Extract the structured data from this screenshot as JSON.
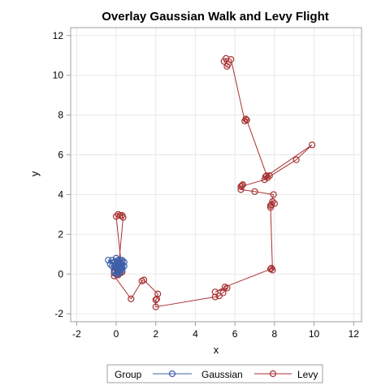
{
  "chart_data": {
    "type": "scatter",
    "title": "Overlay Gaussian Walk and Levy Flight",
    "xlabel": "x",
    "ylabel": "y",
    "xlim": [
      -2.3,
      12.4
    ],
    "ylim": [
      -2.4,
      12.4
    ],
    "x_ticks": [
      -2,
      0,
      2,
      4,
      6,
      8,
      10,
      12
    ],
    "y_ticks": [
      -2,
      0,
      2,
      4,
      6,
      8,
      10,
      12
    ],
    "grid": true,
    "legend": {
      "title": "Group",
      "placement": "bottom",
      "entries": [
        "Gaussian",
        "Levy"
      ]
    },
    "series": [
      {
        "name": "Gaussian",
        "color": "#3f5fa8",
        "marker": "open-circle",
        "line": true,
        "points": [
          [
            0,
            0
          ],
          [
            0.1,
            0.2
          ],
          [
            -0.1,
            0.4
          ],
          [
            0.2,
            0.5
          ],
          [
            0.3,
            0.3
          ],
          [
            0.1,
            0.6
          ],
          [
            -0.2,
            0.7
          ],
          [
            -0.4,
            0.7
          ],
          [
            -0.3,
            0.5
          ],
          [
            0,
            0.8
          ],
          [
            0.2,
            0.7
          ],
          [
            0.4,
            0.6
          ],
          [
            0.3,
            0.4
          ],
          [
            0.1,
            0.3
          ],
          [
            -0.1,
            0.2
          ],
          [
            0.1,
            0.1
          ],
          [
            0.3,
            0.2
          ],
          [
            0.2,
            0.4
          ],
          [
            0,
            0.5
          ],
          [
            0.2,
            0.3
          ],
          [
            0.4,
            0.4
          ],
          [
            0.3,
            0.6
          ],
          [
            0.1,
            0.7
          ],
          [
            -0.1,
            0.6
          ],
          [
            0,
            0.4
          ],
          [
            0.2,
            0.2
          ],
          [
            0.1,
            0
          ],
          [
            -0.1,
            0.1
          ],
          [
            0,
            0.3
          ],
          [
            0.2,
            0.5
          ],
          [
            0.3,
            0.7
          ],
          [
            0.1,
            0.5
          ],
          [
            -0.2,
            0.4
          ],
          [
            -0.1,
            0.2
          ],
          [
            0.2,
            0.1
          ],
          [
            0.3,
            0.3
          ],
          [
            0.1,
            0.4
          ]
        ]
      },
      {
        "name": "Levy",
        "color": "#a83232",
        "marker": "open-circle",
        "line": true,
        "points": [
          [
            0,
            0
          ],
          [
            0.05,
            0.1
          ],
          [
            -0.1,
            0.05
          ],
          [
            0.1,
            -0.05
          ],
          [
            0.2,
            0.05
          ],
          [
            0.3,
            0.1
          ],
          [
            0,
            2.9
          ],
          [
            0.1,
            3
          ],
          [
            0.2,
            2.95
          ],
          [
            0.3,
            2.95
          ],
          [
            0.35,
            2.85
          ],
          [
            0.1,
            0.1
          ],
          [
            -0.1,
            -0.1
          ],
          [
            0.75,
            -1.25
          ],
          [
            1.3,
            -0.35
          ],
          [
            1.4,
            -0.3
          ],
          [
            2.1,
            -1.0
          ],
          [
            2.05,
            -1.25
          ],
          [
            2,
            -1.3
          ],
          [
            2,
            -1.65
          ],
          [
            5,
            -1.15
          ],
          [
            5.2,
            -1.1
          ],
          [
            5.4,
            -0.95
          ],
          [
            5.6,
            -0.7
          ],
          [
            5.0,
            -0.9
          ],
          [
            5.5,
            -0.65
          ],
          [
            7.8,
            0.25
          ],
          [
            7.85,
            0.3
          ],
          [
            7.9,
            0.2
          ],
          [
            7.8,
            3.35
          ],
          [
            7.85,
            3.5
          ],
          [
            8,
            3.55
          ],
          [
            7.9,
            3.65
          ],
          [
            7.8,
            3.45
          ],
          [
            7.95,
            4.0
          ],
          [
            7.0,
            4.15
          ],
          [
            6.3,
            4.25
          ],
          [
            6.35,
            4.45
          ],
          [
            6.4,
            4.5
          ],
          [
            6.3,
            4.4
          ],
          [
            7.5,
            4.75
          ],
          [
            7.6,
            4.95
          ],
          [
            7.75,
            4.95
          ],
          [
            7.55,
            4.9
          ],
          [
            9.9,
            6.5
          ],
          [
            9.1,
            5.75
          ],
          [
            7.65,
            4.85
          ],
          [
            6.6,
            7.75
          ],
          [
            6.55,
            7.8
          ],
          [
            6.5,
            7.7
          ],
          [
            5.8,
            10.8
          ],
          [
            5.55,
            10.85
          ],
          [
            5.45,
            10.7
          ],
          [
            5.65,
            10.55
          ],
          [
            5.6,
            10.45
          ]
        ]
      }
    ]
  }
}
